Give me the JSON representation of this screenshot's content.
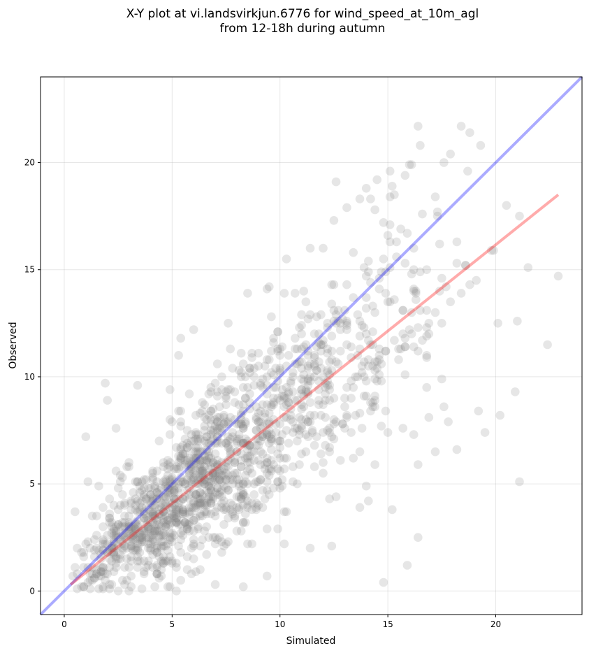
{
  "chart_data": {
    "type": "scatter",
    "title": "X-Y plot at vi.landsvirkjun.6776 for wind_speed_at_10m_agl\nfrom 12-18h during autumn",
    "xlabel": "Simulated",
    "ylabel": "Observed",
    "xlim": [
      -1.1,
      24.0
    ],
    "ylim": [
      -1.1,
      24.0
    ],
    "xticks": [
      0,
      5,
      10,
      15,
      20
    ],
    "yticks": [
      0,
      5,
      10,
      15,
      20
    ],
    "grid": true,
    "colors": {
      "points": "#808080",
      "identity_line": "#0000ff",
      "fit_line": "#ff0000"
    },
    "identity_line": {
      "x": [
        -1.1,
        24.0
      ],
      "y": [
        -1.1,
        24.0
      ]
    },
    "fit_line": {
      "x": [
        0.3,
        22.9
      ],
      "y": [
        0.3,
        18.5
      ]
    },
    "points_count": 1550,
    "points_sample": [
      [
        0.5,
        3.7
      ],
      [
        1.0,
        7.2
      ],
      [
        1.1,
        5.1
      ],
      [
        1.9,
        9.7
      ],
      [
        2.0,
        8.9
      ],
      [
        2.4,
        7.6
      ],
      [
        3.4,
        9.6
      ],
      [
        4.9,
        9.4
      ],
      [
        5.3,
        11.0
      ],
      [
        5.4,
        11.8
      ],
      [
        6.0,
        12.2
      ],
      [
        7.6,
        12.5
      ],
      [
        8.5,
        13.9
      ],
      [
        9.4,
        14.1
      ],
      [
        10.2,
        13.9
      ],
      [
        11.1,
        14.0
      ],
      [
        12.0,
        16.0
      ],
      [
        12.6,
        19.1
      ],
      [
        13.1,
        17.9
      ],
      [
        13.7,
        18.3
      ],
      [
        14.2,
        18.3
      ],
      [
        14.4,
        17.8
      ],
      [
        15.3,
        18.5
      ],
      [
        16.0,
        19.9
      ],
      [
        16.1,
        19.9
      ],
      [
        17.6,
        20.0
      ],
      [
        17.9,
        20.4
      ],
      [
        18.4,
        21.7
      ],
      [
        18.8,
        21.4
      ],
      [
        19.3,
        20.8
      ],
      [
        20.5,
        18.0
      ],
      [
        21.1,
        17.5
      ],
      [
        22.9,
        14.7
      ],
      [
        22.4,
        11.5
      ],
      [
        21.5,
        15.1
      ],
      [
        21.0,
        12.6
      ],
      [
        20.9,
        9.3
      ],
      [
        20.2,
        8.2
      ],
      [
        21.1,
        5.1
      ],
      [
        19.5,
        7.4
      ],
      [
        18.2,
        6.6
      ],
      [
        17.2,
        6.5
      ],
      [
        16.4,
        2.5
      ],
      [
        15.9,
        1.2
      ],
      [
        14.8,
        0.4
      ],
      [
        15.2,
        3.8
      ],
      [
        14.0,
        4.9
      ],
      [
        13.7,
        3.9
      ],
      [
        12.4,
        2.1
      ],
      [
        11.4,
        2.0
      ],
      [
        10.2,
        2.2
      ],
      [
        9.4,
        0.7
      ],
      [
        8.3,
        0.2
      ],
      [
        7.0,
        0.3
      ],
      [
        5.2,
        0.0
      ],
      [
        4.2,
        0.2
      ],
      [
        3.0,
        0.0
      ],
      [
        2.2,
        0.3
      ],
      [
        1.2,
        0.1
      ],
      [
        0.8,
        1.8
      ],
      [
        0.6,
        2.0
      ],
      [
        1.4,
        2.4
      ],
      [
        2.5,
        3.1
      ],
      [
        3.7,
        4.5
      ],
      [
        4.6,
        5.8
      ],
      [
        5.8,
        6.2
      ],
      [
        6.9,
        7.1
      ],
      [
        8.1,
        7.8
      ],
      [
        9.2,
        9.5
      ],
      [
        10.4,
        8.8
      ],
      [
        11.6,
        10.6
      ],
      [
        12.8,
        11.2
      ],
      [
        13.9,
        12.3
      ],
      [
        15.1,
        13.5
      ],
      [
        16.3,
        13.9
      ],
      [
        17.5,
        14.6
      ],
      [
        18.6,
        15.2
      ],
      [
        19.8,
        15.9
      ],
      [
        4.1,
        2.8
      ],
      [
        5.3,
        3.9
      ],
      [
        6.4,
        5.6
      ],
      [
        7.7,
        6.4
      ],
      [
        8.9,
        8.1
      ],
      [
        10.0,
        10.2
      ],
      [
        11.3,
        9.3
      ],
      [
        12.5,
        12.6
      ],
      [
        13.6,
        11.0
      ],
      [
        14.7,
        14.9
      ],
      [
        15.8,
        11.8
      ],
      [
        16.9,
        12.5
      ]
    ]
  }
}
